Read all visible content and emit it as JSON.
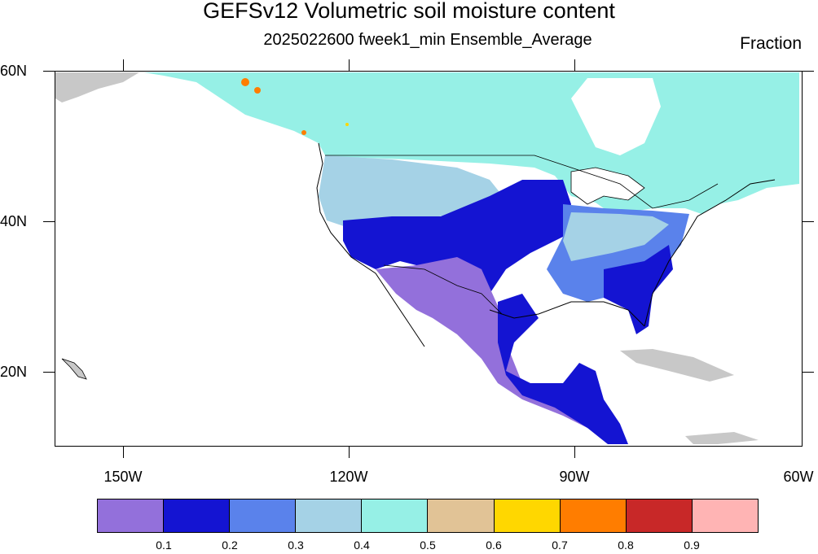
{
  "header": {
    "title": "GEFSv12 Volumetric soil moisture content",
    "subtitle": "2025022600 fweek1_min Ensemble_Average",
    "units": "Fraction"
  },
  "axes": {
    "lat_labels": [
      "60N",
      "40N",
      "20N"
    ],
    "lon_labels": [
      "150W",
      "120W",
      "90W",
      "60W"
    ]
  },
  "colorbar": {
    "colors": [
      "#9370db",
      "#1414d2",
      "#5a82eb",
      "#a5d2e6",
      "#96f0e6",
      "#e1c396",
      "#ffd700",
      "#ff7d00",
      "#c82828",
      "#ffb4b4"
    ],
    "labels": [
      "0.1",
      "0.2",
      "0.3",
      "0.4",
      "0.5",
      "0.6",
      "0.7",
      "0.8",
      "0.9"
    ]
  },
  "legend_colors": {
    "missing": "#c8c8c8",
    "water": "#ffffff",
    "boundary": "#000000"
  }
}
